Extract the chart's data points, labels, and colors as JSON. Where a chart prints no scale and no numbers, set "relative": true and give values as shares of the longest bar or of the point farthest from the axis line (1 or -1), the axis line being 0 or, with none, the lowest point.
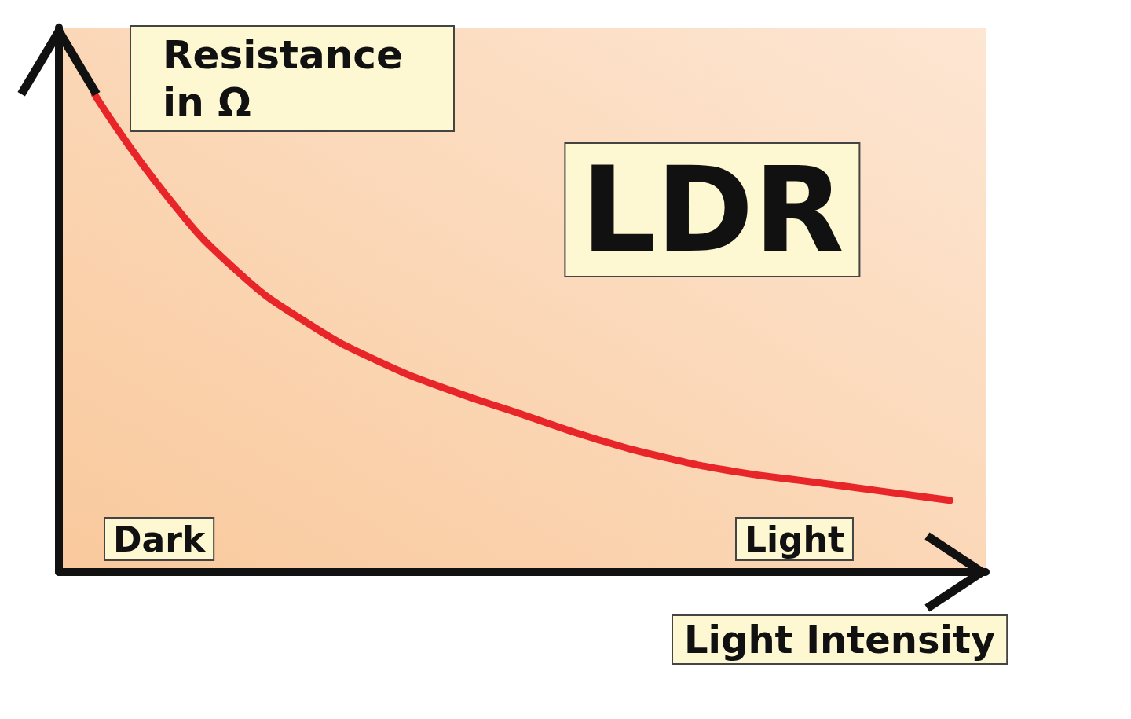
{
  "chart_data": {
    "type": "line",
    "title": "LDR",
    "xlabel": "Light Intensity",
    "ylabel": "Resistance in Ω",
    "relative": true,
    "categories": [
      null,
      null,
      null,
      null,
      null,
      null,
      null,
      null,
      null,
      null,
      null,
      null,
      null
    ],
    "series": [
      {
        "color": "#e8262a",
        "values": [
          1,
          0.79,
          0.63,
          0.52,
          0.44,
          0.38,
          0.33,
          0.28,
          0.24,
          0.21,
          0.19,
          0.17,
          0.15
        ]
      }
    ],
    "annotations": [
      "Dark",
      "Light"
    ]
  }
}
